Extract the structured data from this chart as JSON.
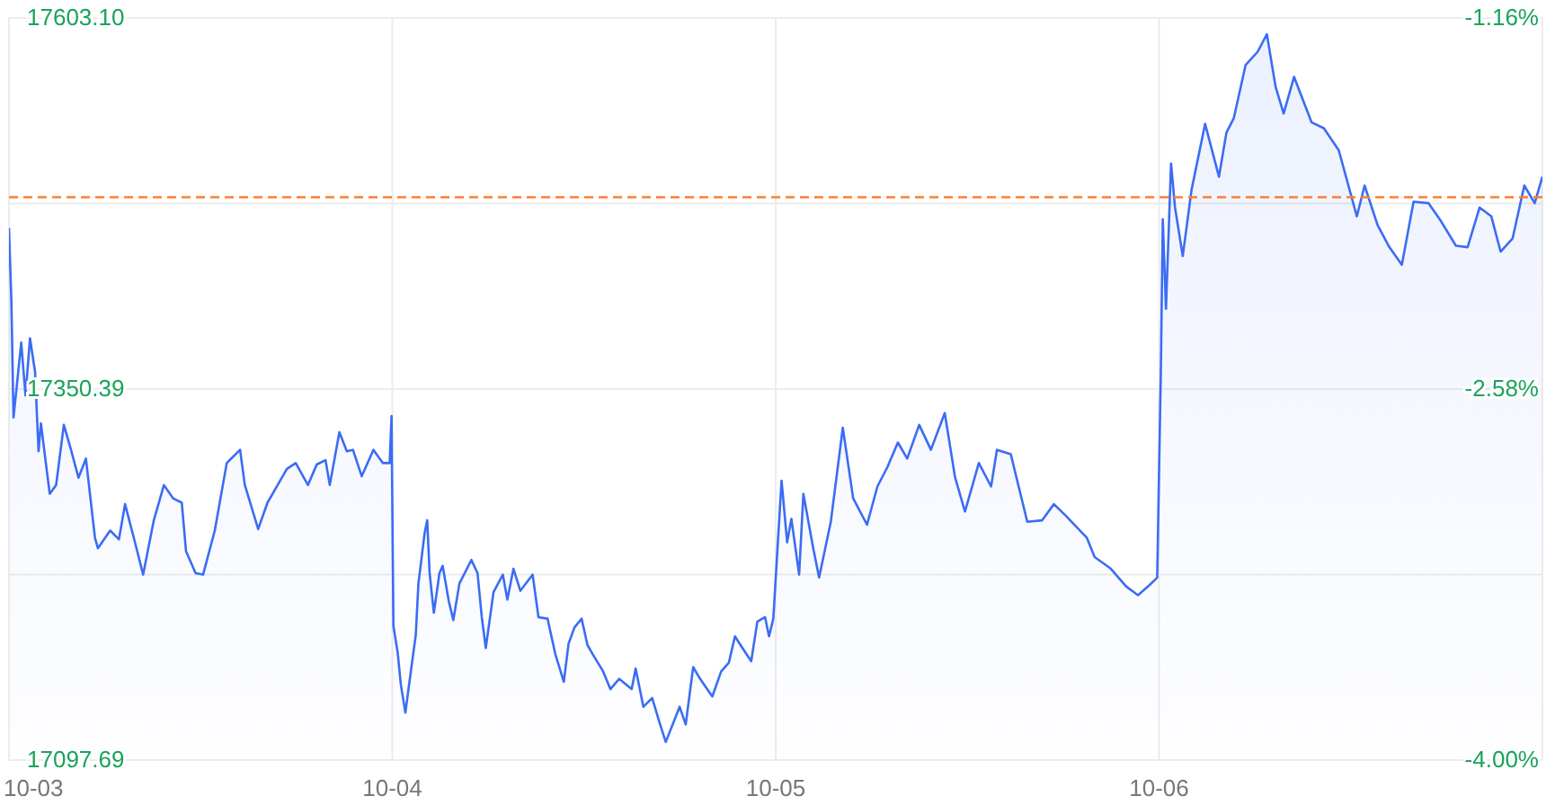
{
  "chart_data": {
    "type": "area",
    "color": "#3b6cf4",
    "grid": true,
    "legend": false,
    "xlim": [
      "--10-03",
      "--10-07"
    ],
    "xticks": [
      {
        "value": "--10-03",
        "label": "10-03"
      },
      {
        "value": "--10-04",
        "label": "10-04"
      },
      {
        "value": "--10-05",
        "label": "10-05"
      },
      {
        "value": "--10-06",
        "label": "10-06"
      }
    ],
    "ylim": [
      17097.69,
      17603.1
    ],
    "yticks": [
      {
        "value": 17097.69,
        "label": "17097.69"
      },
      {
        "value": 17224.04,
        "label": null
      },
      {
        "value": 17350.39,
        "label": "17350.39"
      },
      {
        "value": 17476.75,
        "label": null
      },
      {
        "value": 17603.1,
        "label": "17603.10"
      }
    ],
    "y2lim": [
      -4.0,
      -1.16
    ],
    "y2ticks": [
      {
        "value": -4.0,
        "label": "-4.00%"
      },
      {
        "value": -2.58,
        "label": "-2.58%"
      },
      {
        "value": -1.16,
        "label": "-1.16%"
      }
    ],
    "ref_lines": [
      {
        "axis": "y",
        "value": 17481,
        "label": null,
        "color": "#ff7f2a",
        "line_style": "dashed"
      }
    ],
    "x": [
      "--10-03T00:00",
      "--10-03T00:09",
      "--10-03T00:17",
      "--10-03T00:46",
      "--10-03T01:02",
      "--10-03T01:19",
      "--10-03T01:38",
      "--10-03T01:51",
      "--10-03T02:00",
      "--10-03T02:33",
      "--10-03T02:57",
      "--10-03T03:26",
      "--10-03T03:53",
      "--10-03T04:21",
      "--10-03T04:49",
      "--10-03T05:23",
      "--10-03T05:34",
      "--10-03T06:20",
      "--10-03T06:53",
      "--10-03T07:16",
      "--10-03T07:49",
      "--10-03T08:24",
      "--10-03T09:04",
      "--10-03T09:42",
      "--10-03T10:16",
      "--10-03T10:49",
      "--10-03T11:05",
      "--10-03T11:41",
      "--10-03T12:09",
      "--10-03T12:53",
      "--10-03T13:38",
      "--10-03T14:28",
      "--10-03T14:46",
      "--10-03T15:36",
      "--10-03T16:11",
      "--10-03T16:49",
      "--10-03T17:24",
      "--10-03T17:57",
      "--10-03T18:43",
      "--10-03T19:16",
      "--10-03T19:49",
      "--10-03T20:05",
      "--10-03T20:41",
      "--10-03T21:09",
      "--10-03T21:32",
      "--10-03T22:05",
      "--10-03T22:49",
      "--10-03T23:24",
      "--10-03T23:50",
      "--10-03T23:57",
      "--10-04T00:04",
      "--10-04T00:20",
      "--10-04T00:32",
      "--10-04T00:49",
      "--10-04T01:05",
      "--10-04T01:28",
      "--10-04T01:38",
      "--10-04T02:01",
      "--10-04T02:11",
      "--10-04T02:20",
      "--10-04T02:36",
      "--10-04T02:57",
      "--10-04T03:09",
      "--10-04T03:32",
      "--10-04T03:49",
      "--10-04T04:12",
      "--10-04T04:57",
      "--10-04T05:20",
      "--10-04T05:36",
      "--10-04T05:51",
      "--10-04T06:20",
      "--10-04T06:55",
      "--10-04T07:12",
      "--10-04T07:35",
      "--10-04T08:01",
      "--10-04T08:47",
      "--10-04T09:09",
      "--10-04T09:43",
      "--10-04T10:12",
      "--10-04T10:44",
      "--10-04T11:02",
      "--10-04T11:24",
      "--10-04T11:51",
      "--10-04T12:13",
      "--10-04T12:32",
      "--10-04T13:12",
      "--10-04T13:39",
      "--10-04T14:12",
      "--10-04T14:59",
      "--10-04T15:14",
      "--10-04T15:43",
      "--10-04T16:16",
      "--10-04T16:44",
      "--10-04T17:07",
      "--10-04T17:59",
      "--10-04T18:22",
      "--10-04T18:50",
      "--10-04T19:16",
      "--10-04T20:02",
      "--10-04T20:35",
      "--10-04T21:04",
      "--10-04T21:27",
      "--10-04T21:55",
      "--10-04T22:28",
      "--10-04T22:51",
      "--10-04T23:20",
      "--10-04T23:35",
      "--10-04T23:51",
      "--10-05T00:22",
      "--10-05T00:43",
      "--10-05T00:59",
      "--10-05T01:28",
      "--10-05T01:44",
      "--10-05T02:21",
      "--10-05T02:43",
      "--10-05T03:27",
      "--10-05T04:12",
      "--10-05T04:51",
      "--10-05T05:43",
      "--10-05T06:22",
      "--10-05T06:59",
      "--10-05T07:39",
      "--10-05T08:14",
      "--10-05T08:59",
      "--10-05T09:43",
      "--10-05T10:35",
      "--10-05T11:14",
      "--10-05T11:51",
      "--10-05T12:43",
      "--10-05T13:29",
      "--10-05T13:51",
      "--10-05T14:43",
      "--10-05T15:45",
      "--10-05T16:41",
      "--10-05T17:25",
      "--10-05T18:10",
      "--10-05T19:29",
      "--10-05T19:58",
      "--10-05T20:59",
      "--10-05T21:56",
      "--10-05T22:41",
      "--10-05T23:25",
      "--10-05T23:53",
      "--10-06T00:07",
      "--10-06T00:14",
      "--10-06T00:26",
      "--10-06T00:45",
      "--10-06T01:00",
      "--10-06T01:29",
      "--10-06T02:02",
      "--10-06T02:53",
      "--10-06T03:45",
      "--10-06T04:13",
      "--10-06T04:41",
      "--10-06T05:25",
      "--10-06T06:10",
      "--10-06T06:45",
      "--10-06T07:18",
      "--10-06T07:48",
      "--10-06T08:27",
      "--10-06T09:33",
      "--10-06T10:19",
      "--10-06T11:15",
      "--10-06T12:23",
      "--10-06T12:52",
      "--10-06T13:41",
      "--10-06T14:25",
      "--10-06T15:12",
      "--10-06T15:56",
      "--10-06T16:52",
      "--10-06T17:38",
      "--10-06T18:35",
      "--10-06T19:19",
      "--10-06T20:04",
      "--10-06T20:48",
      "--10-06T21:23",
      "--10-06T22:08",
      "--10-06T22:52",
      "--10-06T23:31",
      "--10-07T00:00"
    ],
    "values": [
      17460,
      17410,
      17331,
      17382,
      17346,
      17385,
      17362,
      17308,
      17327,
      17279,
      17285,
      17326,
      17309,
      17290,
      17303,
      17249,
      17242,
      17254,
      17248,
      17272,
      17249,
      17224,
      17261,
      17285,
      17276,
      17273,
      17240,
      17225,
      17224,
      17254,
      17300,
      17309,
      17285,
      17255,
      17273,
      17285,
      17296,
      17300,
      17285,
      17299,
      17302,
      17285,
      17321,
      17308,
      17309,
      17291,
      17309,
      17300,
      17300,
      17332,
      17189,
      17171,
      17149,
      17130,
      17152,
      17183,
      17218,
      17252,
      17261,
      17225,
      17198,
      17225,
      17230,
      17206,
      17193,
      17218,
      17234,
      17225,
      17195,
      17174,
      17212,
      17224,
      17207,
      17228,
      17213,
      17224,
      17195,
      17194,
      17170,
      17151,
      17177,
      17188,
      17194,
      17176,
      17170,
      17158,
      17146,
      17153,
      17146,
      17160,
      17134,
      17140,
      17123,
      17110,
      17134,
      17122,
      17161,
      17153,
      17141,
      17158,
      17164,
      17182,
      17174,
      17165,
      17192,
      17195,
      17182,
      17194,
      17288,
      17246,
      17262,
      17224,
      17279,
      17242,
      17222,
      17260,
      17324,
      17276,
      17258,
      17284,
      17297,
      17314,
      17303,
      17326,
      17309,
      17334,
      17290,
      17267,
      17300,
      17284,
      17309,
      17306,
      17260,
      17261,
      17272,
      17264,
      17249,
      17236,
      17228,
      17216,
      17210,
      17217,
      17222,
      17366,
      17466,
      17405,
      17504,
      17474,
      17441,
      17486,
      17531,
      17495,
      17525,
      17535,
      17571,
      17580,
      17592,
      17556,
      17538,
      17563,
      17532,
      17528,
      17513,
      17468,
      17489,
      17462,
      17447,
      17435,
      17478,
      17477,
      17465,
      17448,
      17447,
      17474,
      17468,
      17444,
      17453,
      17489,
      17477,
      17495
    ]
  }
}
